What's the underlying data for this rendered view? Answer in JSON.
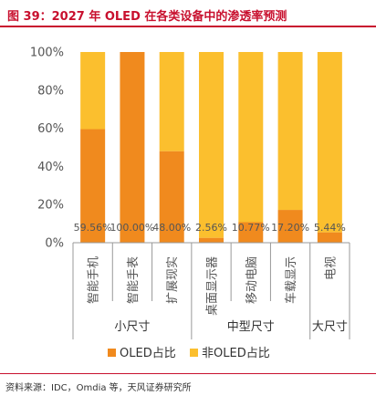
{
  "figure": {
    "title": "图 39：2027 年 OLED 在各类设备中的渗透率预测",
    "source": "资料来源：IDC，Omdia 等，天风证券研究所"
  },
  "colors": {
    "title": "#c8102e",
    "oled": "#f08a1e",
    "non_oled": "#fbbf2e",
    "axis": "#999999",
    "text": "#555555"
  },
  "chart_data": {
    "type": "bar",
    "stacked": true,
    "categories": [
      "智能手机",
      "智能手表",
      "扩展现实",
      "桌面显示器",
      "移动电脑",
      "车载显示",
      "电视"
    ],
    "groups": [
      {
        "label": "小尺寸",
        "categories": [
          "智能手机",
          "智能手表",
          "扩展现实"
        ]
      },
      {
        "label": "中型尺寸",
        "categories": [
          "桌面显示器",
          "移动电脑",
          "车载显示"
        ]
      },
      {
        "label": "大尺寸",
        "categories": [
          "电视"
        ]
      }
    ],
    "series": [
      {
        "name": "OLED占比",
        "values": [
          59.56,
          100.0,
          48.0,
          2.56,
          10.77,
          17.2,
          5.44
        ]
      },
      {
        "name": "非OLED占比",
        "values": [
          40.44,
          0.0,
          52.0,
          97.44,
          89.23,
          82.8,
          94.56
        ]
      }
    ],
    "data_labels": [
      "59.56%",
      "100.00%",
      "48.00%",
      "2.56%",
      "10.77%",
      "17.20%",
      "5.44%"
    ],
    "yticks": [
      "0%",
      "20%",
      "40%",
      "60%",
      "80%",
      "100%"
    ],
    "ylim": [
      0,
      100
    ],
    "grid": false,
    "legend_position": "bottom"
  }
}
